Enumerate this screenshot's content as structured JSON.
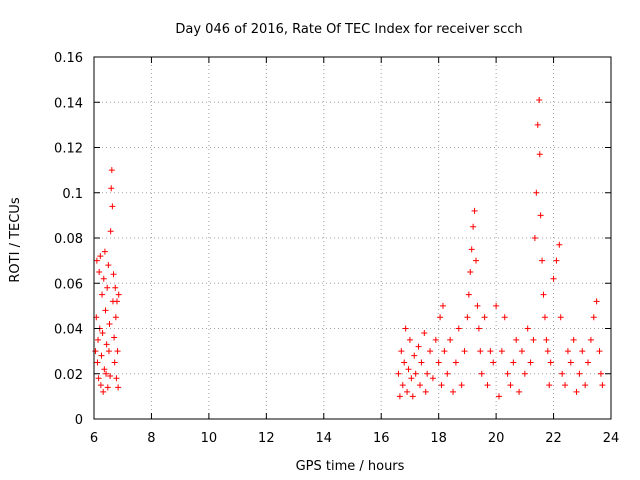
{
  "chart_data": {
    "type": "scatter",
    "title": "Day 046 of 2016, Rate Of TEC Index for receiver scch",
    "xlabel": "GPS time / hours",
    "ylabel": "ROTI / TECUs",
    "xlim": [
      6,
      24
    ],
    "ylim": [
      0,
      0.16
    ],
    "xticks": [
      6,
      8,
      10,
      12,
      14,
      16,
      18,
      20,
      22,
      24
    ],
    "yticks": [
      0,
      0.02,
      0.04,
      0.06,
      0.08,
      0.1,
      0.12,
      0.14,
      0.16
    ],
    "xtick_labels": [
      "6",
      "8",
      "10",
      "12",
      "14",
      "16",
      "18",
      "20",
      "22",
      "24"
    ],
    "ytick_labels": [
      "0",
      "0.02",
      "0.04",
      "0.06",
      "0.08",
      "0.1",
      "0.12",
      "0.14",
      "0.16"
    ],
    "grid": true,
    "marker": "+",
    "color": "#ff0000",
    "series": [
      {
        "name": "ROTI",
        "points": [
          [
            6.05,
            0.03
          ],
          [
            6.08,
            0.045
          ],
          [
            6.1,
            0.07
          ],
          [
            6.12,
            0.025
          ],
          [
            6.14,
            0.035
          ],
          [
            6.16,
            0.018
          ],
          [
            6.18,
            0.065
          ],
          [
            6.2,
            0.04
          ],
          [
            6.22,
            0.072
          ],
          [
            6.24,
            0.015
          ],
          [
            6.26,
            0.028
          ],
          [
            6.28,
            0.055
          ],
          [
            6.3,
            0.038
          ],
          [
            6.32,
            0.012
          ],
          [
            6.34,
            0.062
          ],
          [
            6.36,
            0.022
          ],
          [
            6.38,
            0.074
          ],
          [
            6.4,
            0.048
          ],
          [
            6.42,
            0.02
          ],
          [
            6.44,
            0.033
          ],
          [
            6.46,
            0.058
          ],
          [
            6.48,
            0.014
          ],
          [
            6.5,
            0.068
          ],
          [
            6.52,
            0.03
          ],
          [
            6.54,
            0.042
          ],
          [
            6.56,
            0.019
          ],
          [
            6.58,
            0.083
          ],
          [
            6.6,
            0.102
          ],
          [
            6.62,
            0.11
          ],
          [
            6.64,
            0.094
          ],
          [
            6.66,
            0.052
          ],
          [
            6.68,
            0.064
          ],
          [
            6.7,
            0.036
          ],
          [
            6.72,
            0.025
          ],
          [
            6.74,
            0.058
          ],
          [
            6.76,
            0.045
          ],
          [
            6.78,
            0.018
          ],
          [
            6.8,
            0.052
          ],
          [
            6.82,
            0.03
          ],
          [
            6.84,
            0.014
          ],
          [
            6.86,
            0.055
          ],
          [
            16.6,
            0.02
          ],
          [
            16.65,
            0.01
          ],
          [
            16.7,
            0.03
          ],
          [
            16.75,
            0.015
          ],
          [
            16.8,
            0.025
          ],
          [
            16.85,
            0.04
          ],
          [
            16.9,
            0.012
          ],
          [
            16.95,
            0.022
          ],
          [
            17.0,
            0.035
          ],
          [
            17.05,
            0.018
          ],
          [
            17.1,
            0.01
          ],
          [
            17.15,
            0.028
          ],
          [
            17.2,
            0.02
          ],
          [
            17.3,
            0.032
          ],
          [
            17.35,
            0.015
          ],
          [
            17.4,
            0.025
          ],
          [
            17.5,
            0.038
          ],
          [
            17.55,
            0.012
          ],
          [
            17.6,
            0.02
          ],
          [
            17.7,
            0.03
          ],
          [
            17.8,
            0.018
          ],
          [
            17.9,
            0.035
          ],
          [
            18.0,
            0.025
          ],
          [
            18.05,
            0.045
          ],
          [
            18.1,
            0.015
          ],
          [
            18.15,
            0.05
          ],
          [
            18.2,
            0.03
          ],
          [
            18.3,
            0.02
          ],
          [
            18.4,
            0.035
          ],
          [
            18.5,
            0.012
          ],
          [
            18.6,
            0.025
          ],
          [
            18.7,
            0.04
          ],
          [
            18.8,
            0.015
          ],
          [
            18.9,
            0.03
          ],
          [
            19.0,
            0.045
          ],
          [
            19.05,
            0.055
          ],
          [
            19.1,
            0.065
          ],
          [
            19.15,
            0.075
          ],
          [
            19.2,
            0.085
          ],
          [
            19.25,
            0.092
          ],
          [
            19.3,
            0.07
          ],
          [
            19.35,
            0.05
          ],
          [
            19.4,
            0.04
          ],
          [
            19.45,
            0.03
          ],
          [
            19.5,
            0.02
          ],
          [
            19.6,
            0.045
          ],
          [
            19.7,
            0.015
          ],
          [
            19.8,
            0.03
          ],
          [
            19.9,
            0.025
          ],
          [
            20.0,
            0.05
          ],
          [
            20.1,
            0.01
          ],
          [
            20.2,
            0.03
          ],
          [
            20.3,
            0.045
          ],
          [
            20.4,
            0.02
          ],
          [
            20.5,
            0.015
          ],
          [
            20.6,
            0.025
          ],
          [
            20.7,
            0.035
          ],
          [
            20.8,
            0.012
          ],
          [
            20.9,
            0.03
          ],
          [
            21.0,
            0.02
          ],
          [
            21.1,
            0.04
          ],
          [
            21.2,
            0.025
          ],
          [
            21.3,
            0.035
          ],
          [
            21.35,
            0.08
          ],
          [
            21.4,
            0.1
          ],
          [
            21.45,
            0.13
          ],
          [
            21.5,
            0.141
          ],
          [
            21.52,
            0.117
          ],
          [
            21.55,
            0.09
          ],
          [
            21.6,
            0.07
          ],
          [
            21.65,
            0.055
          ],
          [
            21.7,
            0.045
          ],
          [
            21.75,
            0.035
          ],
          [
            21.8,
            0.03
          ],
          [
            21.85,
            0.015
          ],
          [
            21.9,
            0.025
          ],
          [
            22.0,
            0.062
          ],
          [
            22.1,
            0.07
          ],
          [
            22.2,
            0.077
          ],
          [
            22.25,
            0.045
          ],
          [
            22.3,
            0.02
          ],
          [
            22.4,
            0.015
          ],
          [
            22.5,
            0.03
          ],
          [
            22.6,
            0.025
          ],
          [
            22.7,
            0.035
          ],
          [
            22.8,
            0.012
          ],
          [
            22.9,
            0.02
          ],
          [
            23.0,
            0.03
          ],
          [
            23.1,
            0.015
          ],
          [
            23.2,
            0.025
          ],
          [
            23.3,
            0.035
          ],
          [
            23.4,
            0.045
          ],
          [
            23.5,
            0.052
          ],
          [
            23.6,
            0.03
          ],
          [
            23.65,
            0.02
          ],
          [
            23.7,
            0.015
          ]
        ]
      }
    ]
  }
}
